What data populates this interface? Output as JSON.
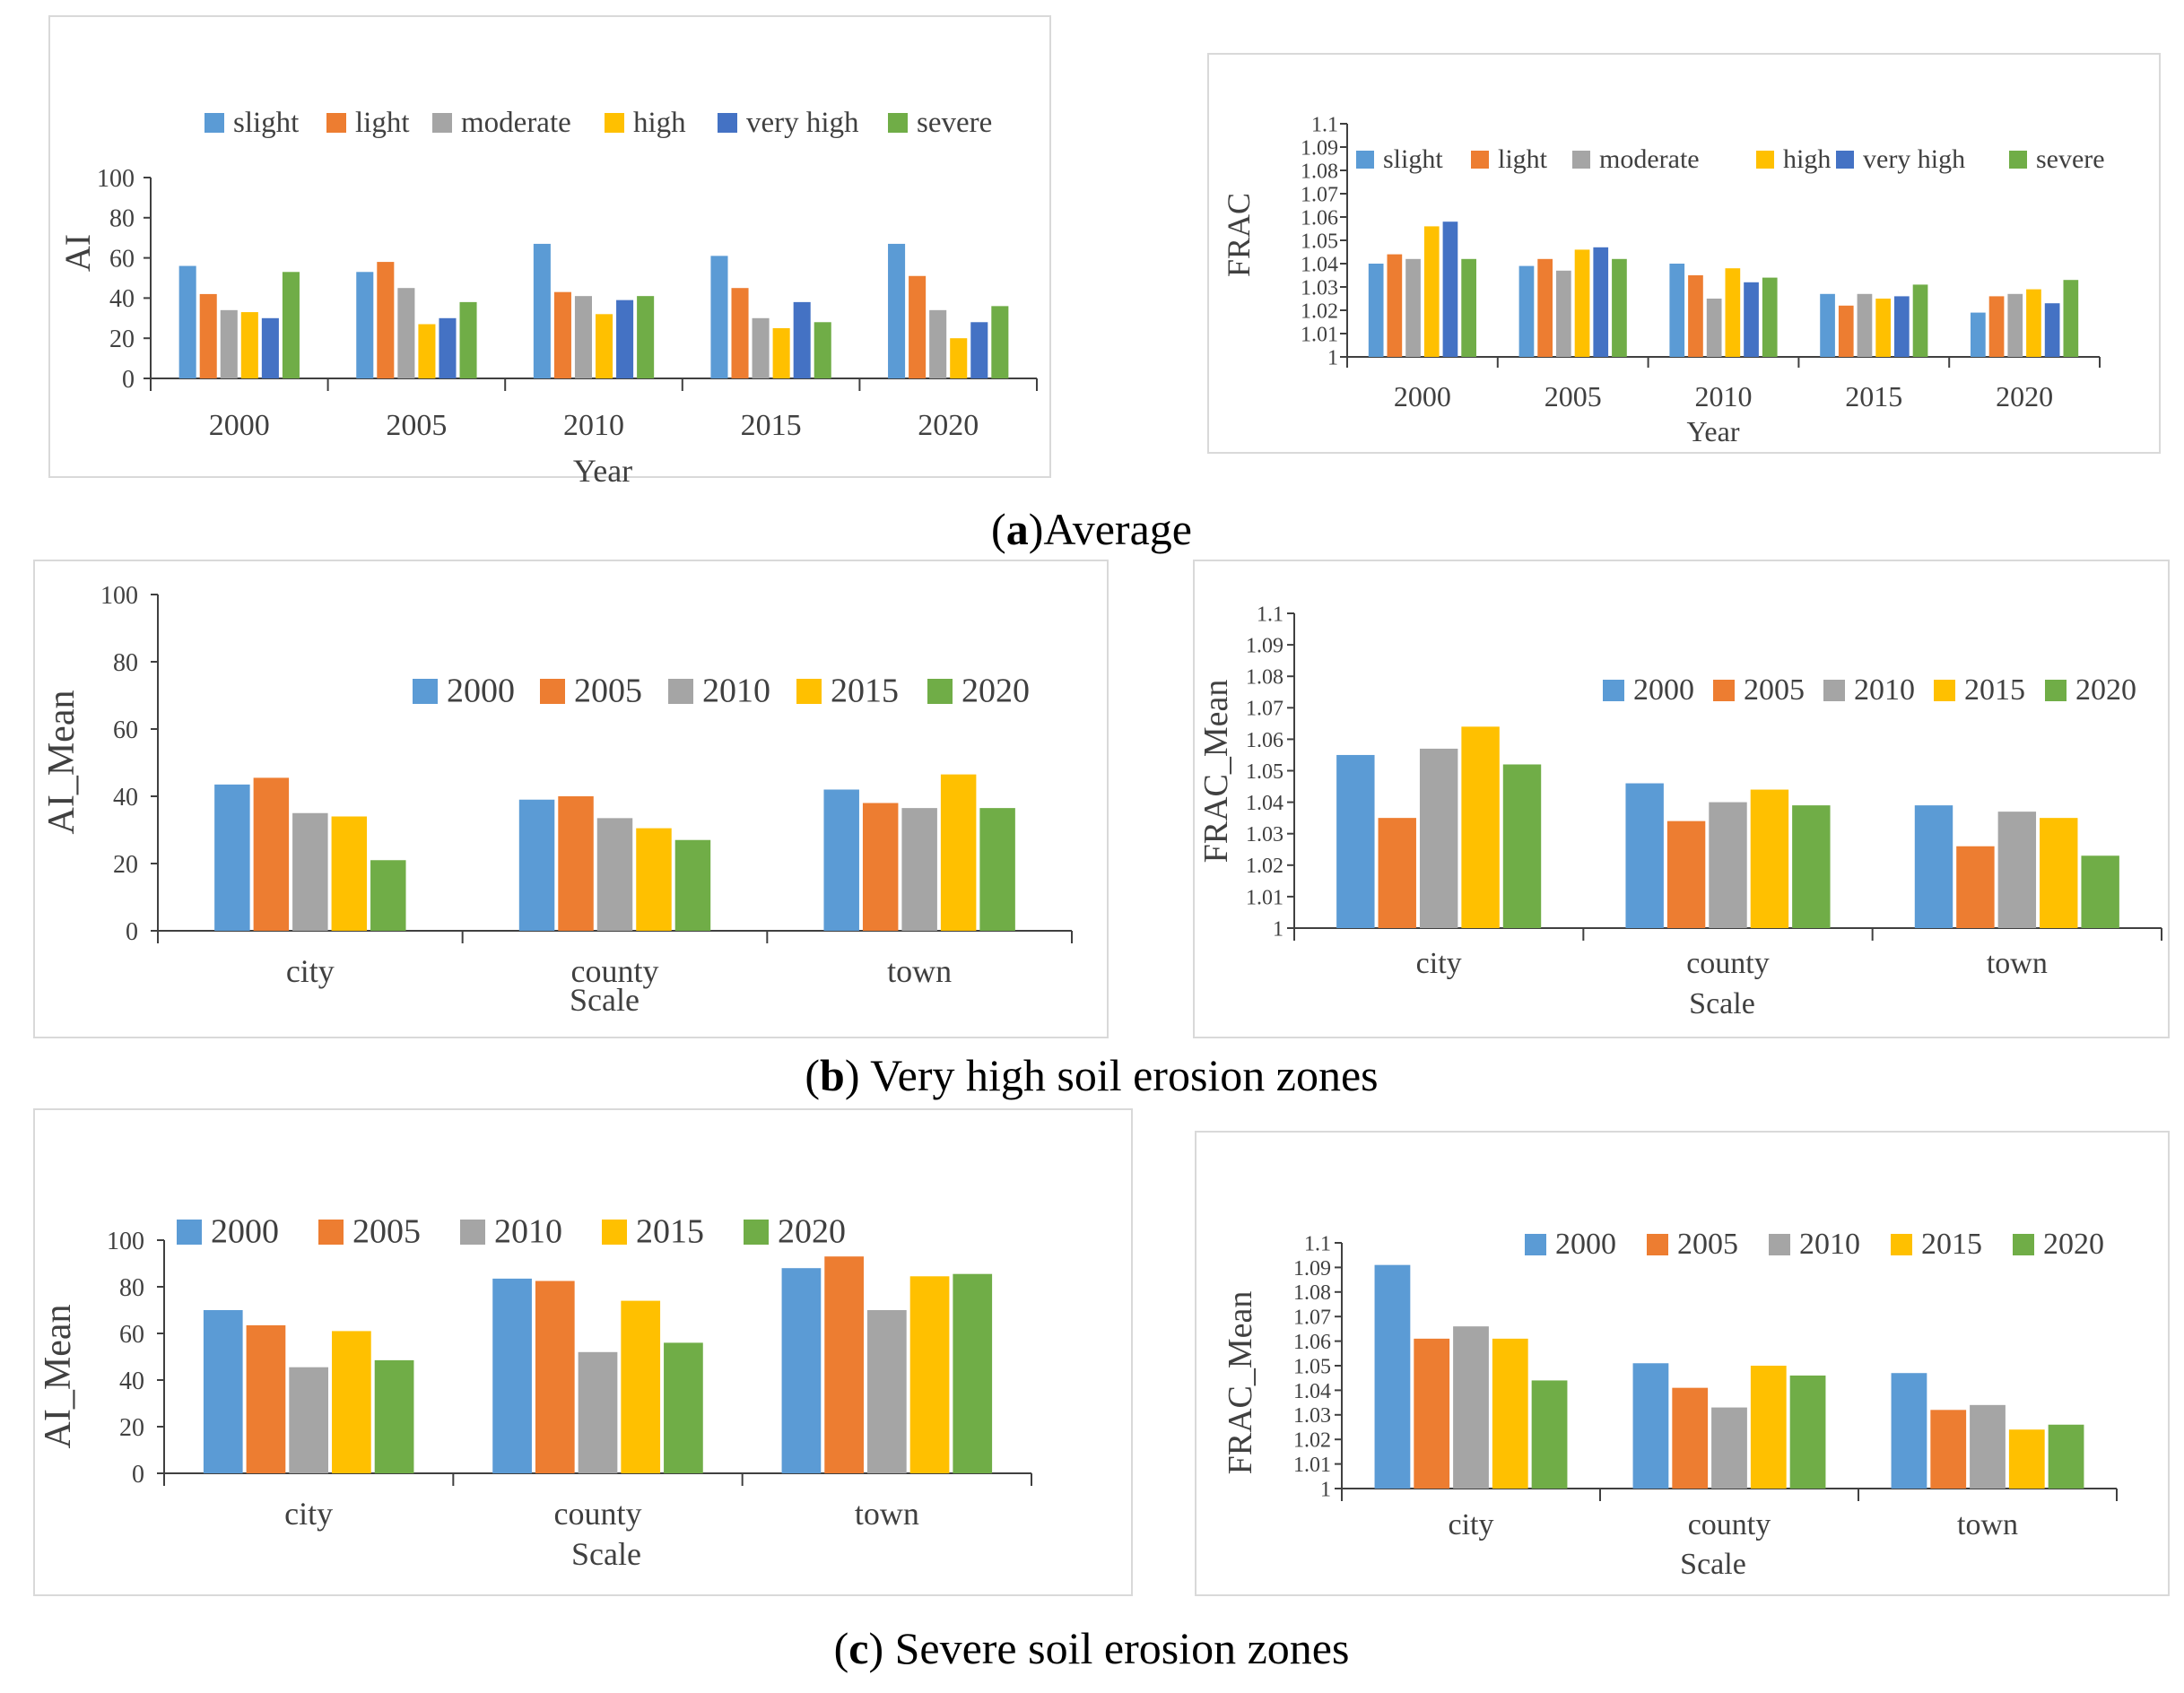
{
  "captions": {
    "a_letter": "a",
    "a_text": "Average",
    "b_letter": "b",
    "b_text": " Very high soil erosion zones",
    "c_letter": "c",
    "c_text": " Severe soil erosion zones"
  },
  "colors": {
    "blue": "#5B9BD5",
    "orange": "#ED7D31",
    "gray": "#A5A5A5",
    "yellow": "#FFC000",
    "darkblue": "#4472C4",
    "green": "#70AD47",
    "axis": "#404040",
    "frame": "#D9D9D9"
  },
  "chart_data": [
    {
      "id": "a-left",
      "type": "bar",
      "title": "",
      "xlabel": "Year",
      "ylabel": "AI",
      "categories": [
        "2000",
        "2005",
        "2010",
        "2015",
        "2020"
      ],
      "ylim": [
        0,
        100
      ],
      "yticks": [
        "0",
        "20",
        "40",
        "60",
        "80",
        "100"
      ],
      "series": [
        {
          "name": "slight",
          "color": "#5B9BD5",
          "values": [
            56,
            53,
            67,
            61,
            67
          ]
        },
        {
          "name": "light",
          "color": "#ED7D31",
          "values": [
            42,
            58,
            43,
            45,
            51
          ]
        },
        {
          "name": "moderate",
          "color": "#A5A5A5",
          "values": [
            34,
            45,
            41,
            30,
            34
          ]
        },
        {
          "name": "high",
          "color": "#FFC000",
          "values": [
            33,
            27,
            32,
            25,
            20
          ]
        },
        {
          "name": "very high",
          "color": "#4472C4",
          "values": [
            30,
            30,
            39,
            38,
            28
          ]
        },
        {
          "name": "severe",
          "color": "#70AD47",
          "values": [
            53,
            38,
            41,
            28,
            36
          ]
        }
      ]
    },
    {
      "id": "a-right",
      "type": "bar",
      "title": "",
      "xlabel": "Year",
      "ylabel": "FRAC",
      "categories": [
        "2000",
        "2005",
        "2010",
        "2015",
        "2020"
      ],
      "ylim": [
        1,
        1.1
      ],
      "yticks": [
        "1",
        "1.01",
        "1.02",
        "1.03",
        "1.04",
        "1.05",
        "1.06",
        "1.07",
        "1.08",
        "1.09",
        "1.1"
      ],
      "series": [
        {
          "name": "slight",
          "color": "#5B9BD5",
          "values": [
            1.04,
            1.039,
            1.04,
            1.027,
            1.019
          ]
        },
        {
          "name": "light",
          "color": "#ED7D31",
          "values": [
            1.044,
            1.042,
            1.035,
            1.022,
            1.026
          ]
        },
        {
          "name": "moderate",
          "color": "#A5A5A5",
          "values": [
            1.042,
            1.037,
            1.025,
            1.027,
            1.027
          ]
        },
        {
          "name": "high",
          "color": "#FFC000",
          "values": [
            1.056,
            1.046,
            1.038,
            1.025,
            1.029
          ]
        },
        {
          "name": "very high",
          "color": "#4472C4",
          "values": [
            1.058,
            1.047,
            1.032,
            1.026,
            1.023
          ]
        },
        {
          "name": "severe",
          "color": "#70AD47",
          "values": [
            1.042,
            1.042,
            1.034,
            1.031,
            1.033
          ]
        }
      ]
    },
    {
      "id": "b-left",
      "type": "bar",
      "title": "",
      "xlabel": "Scale",
      "ylabel": "AI_Mean",
      "categories": [
        "city",
        "county",
        "town"
      ],
      "ylim": [
        0,
        100
      ],
      "yticks": [
        "0",
        "20",
        "40",
        "60",
        "80",
        "100"
      ],
      "series": [
        {
          "name": "2000",
          "color": "#5B9BD5",
          "values": [
            43.5,
            39,
            42
          ]
        },
        {
          "name": "2005",
          "color": "#ED7D31",
          "values": [
            45.5,
            40,
            38
          ]
        },
        {
          "name": "2010",
          "color": "#A5A5A5",
          "values": [
            35,
            33.5,
            36.5
          ]
        },
        {
          "name": "2015",
          "color": "#FFC000",
          "values": [
            34,
            30.5,
            46.5
          ]
        },
        {
          "name": "2020",
          "color": "#70AD47",
          "values": [
            21,
            27,
            36.5
          ]
        }
      ]
    },
    {
      "id": "b-right",
      "type": "bar",
      "title": "",
      "xlabel": "Scale",
      "ylabel": "FRAC_Mean",
      "categories": [
        "city",
        "county",
        "town"
      ],
      "ylim": [
        1,
        1.1
      ],
      "yticks": [
        "1",
        "1.01",
        "1.02",
        "1.03",
        "1.04",
        "1.05",
        "1.06",
        "1.07",
        "1.08",
        "1.09",
        "1.1"
      ],
      "series": [
        {
          "name": "2000",
          "color": "#5B9BD5",
          "values": [
            1.055,
            1.046,
            1.039
          ]
        },
        {
          "name": "2005",
          "color": "#ED7D31",
          "values": [
            1.035,
            1.034,
            1.026
          ]
        },
        {
          "name": "2010",
          "color": "#A5A5A5",
          "values": [
            1.057,
            1.04,
            1.037
          ]
        },
        {
          "name": "2015",
          "color": "#FFC000",
          "values": [
            1.064,
            1.044,
            1.035
          ]
        },
        {
          "name": "2020",
          "color": "#70AD47",
          "values": [
            1.052,
            1.039,
            1.023
          ]
        }
      ]
    },
    {
      "id": "c-left",
      "type": "bar",
      "title": "",
      "xlabel": "Scale",
      "ylabel": "AI_Mean",
      "categories": [
        "city",
        "county",
        "town"
      ],
      "ylim": [
        0,
        100
      ],
      "yticks": [
        "0",
        "20",
        "40",
        "60",
        "80",
        "100"
      ],
      "series": [
        {
          "name": "2000",
          "color": "#5B9BD5",
          "values": [
            70,
            83.5,
            88
          ]
        },
        {
          "name": "2005",
          "color": "#ED7D31",
          "values": [
            63.5,
            82.5,
            93
          ]
        },
        {
          "name": "2010",
          "color": "#A5A5A5",
          "values": [
            45.5,
            52,
            70
          ]
        },
        {
          "name": "2015",
          "color": "#FFC000",
          "values": [
            61,
            74,
            84.5
          ]
        },
        {
          "name": "2020",
          "color": "#70AD47",
          "values": [
            48.5,
            56,
            85.5
          ]
        }
      ]
    },
    {
      "id": "c-right",
      "type": "bar",
      "title": "",
      "xlabel": "Scale",
      "ylabel": "FRAC_Mean",
      "categories": [
        "city",
        "county",
        "town"
      ],
      "ylim": [
        1,
        1.1
      ],
      "yticks": [
        "1",
        "1.01",
        "1.02",
        "1.03",
        "1.04",
        "1.05",
        "1.06",
        "1.07",
        "1.08",
        "1.09",
        "1.1"
      ],
      "series": [
        {
          "name": "2000",
          "color": "#5B9BD5",
          "values": [
            1.091,
            1.051,
            1.047
          ]
        },
        {
          "name": "2005",
          "color": "#ED7D31",
          "values": [
            1.061,
            1.041,
            1.032
          ]
        },
        {
          "name": "2010",
          "color": "#A5A5A5",
          "values": [
            1.066,
            1.033,
            1.034
          ]
        },
        {
          "name": "2015",
          "color": "#FFC000",
          "values": [
            1.061,
            1.05,
            1.024
          ]
        },
        {
          "name": "2020",
          "color": "#70AD47",
          "values": [
            1.044,
            1.046,
            1.026
          ]
        }
      ]
    }
  ]
}
